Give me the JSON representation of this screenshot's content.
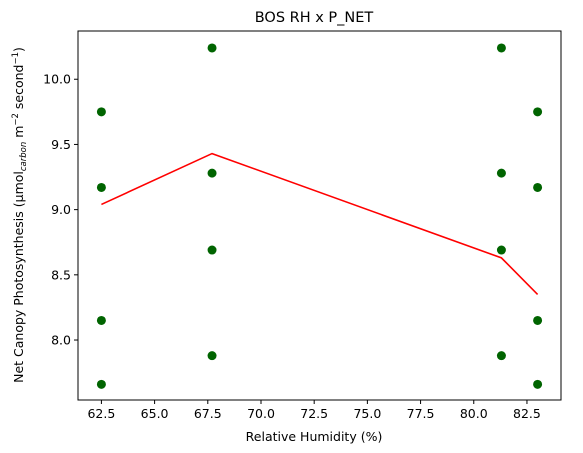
{
  "chart_data": {
    "type": "scatter",
    "title": "BOS RH x P_NET",
    "xlabel": "Relative Humidity (%)",
    "ylabel": {
      "prefix": "Net Canopy Photosynthesis (µmol",
      "sub": "carbon",
      "m": " m",
      "m_sup": "−2",
      "sec": " second",
      "sec_sup": "−1",
      "suffix": ")"
    },
    "xlim": [
      61.4,
      84.1
    ],
    "ylim": [
      7.54,
      10.37
    ],
    "xticks": [
      62.5,
      65.0,
      67.5,
      70.0,
      72.5,
      75.0,
      77.5,
      80.0,
      82.5
    ],
    "xtick_labels": [
      "62.5",
      "65.0",
      "67.5",
      "70.0",
      "72.5",
      "75.0",
      "77.5",
      "80.0",
      "82.5"
    ],
    "yticks": [
      8.0,
      8.5,
      9.0,
      9.5,
      10.0
    ],
    "ytick_labels": [
      "8.0",
      "8.5",
      "9.0",
      "9.5",
      "10.0"
    ],
    "grid": false,
    "scatter": {
      "color": "#006400",
      "points": [
        [
          62.5,
          9.75
        ],
        [
          62.5,
          9.17
        ],
        [
          62.5,
          8.15
        ],
        [
          62.5,
          7.66
        ],
        [
          67.7,
          10.24
        ],
        [
          67.7,
          9.28
        ],
        [
          67.7,
          8.69
        ],
        [
          67.7,
          7.88
        ],
        [
          81.3,
          10.24
        ],
        [
          81.3,
          9.28
        ],
        [
          81.3,
          8.69
        ],
        [
          81.3,
          7.88
        ],
        [
          83.0,
          9.75
        ],
        [
          83.0,
          9.17
        ],
        [
          83.0,
          8.15
        ],
        [
          83.0,
          7.66
        ]
      ]
    },
    "line": {
      "color": "#ff0000",
      "x": [
        62.5,
        67.7,
        81.3,
        83.0
      ],
      "y": [
        9.04,
        9.43,
        8.63,
        8.35
      ]
    }
  }
}
